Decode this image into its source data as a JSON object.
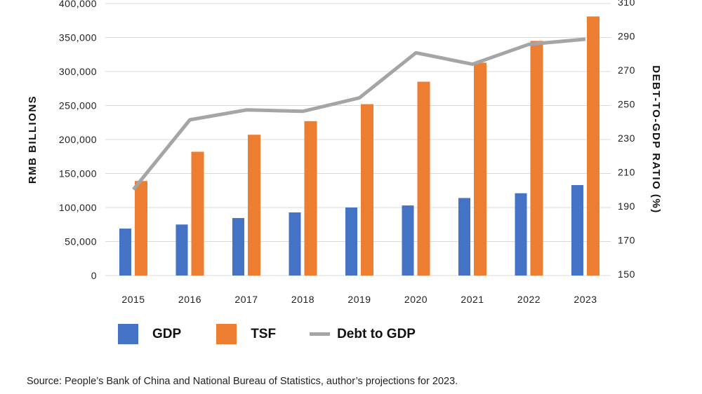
{
  "chart_data": {
    "type": "bar+line",
    "categories": [
      "2015",
      "2016",
      "2017",
      "2018",
      "2019",
      "2020",
      "2021",
      "2022",
      "2023"
    ],
    "series": [
      {
        "name": "GDP",
        "type": "bar",
        "axis": "left",
        "color": "#4472c4",
        "values": [
          69000,
          75000,
          84500,
          92800,
          100000,
          103000,
          114000,
          121000,
          133000
        ]
      },
      {
        "name": "TSF",
        "type": "bar",
        "axis": "left",
        "color": "#ed7d31",
        "values": [
          139000,
          182000,
          207000,
          227000,
          252000,
          285000,
          313000,
          345000,
          381000
        ]
      },
      {
        "name": "Debt to GDP",
        "type": "line",
        "axis": "right",
        "color": "#a5a5a5",
        "values": [
          200.6,
          241.6,
          247.4,
          246.6,
          254.5,
          281,
          274.3,
          286,
          289
        ]
      }
    ],
    "ylabel": "RMB BILLIONS",
    "y2label": "DEBT-TO-GDP RATIO (%)",
    "ylim": [
      0,
      400000
    ],
    "y2lim": [
      150,
      310
    ],
    "yticks": [
      "0",
      "50,000",
      "100,000",
      "150,000",
      "200,000",
      "250,000",
      "300,000",
      "350,000",
      "400,000"
    ],
    "y2ticks": [
      "150",
      "170",
      "190",
      "210",
      "230",
      "250",
      "270",
      "290",
      "310"
    ],
    "grid": true,
    "legend_position": "bottom"
  },
  "source": "Source: People’s Bank of China and National Bureau of Statistics, author’s projections for 2023."
}
